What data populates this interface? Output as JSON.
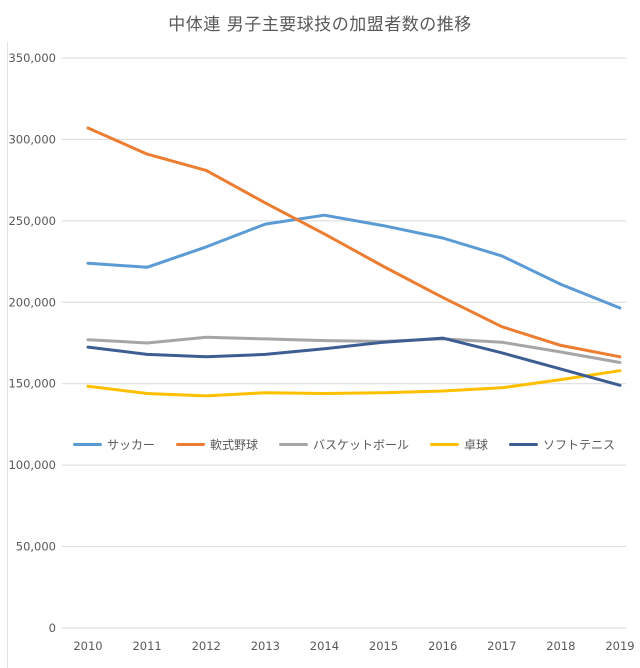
{
  "chart_data": {
    "type": "line",
    "title": "中体連 男子主要球技の加盟者数の推移",
    "x": [
      2010,
      2011,
      2012,
      2013,
      2014,
      2015,
      2016,
      2017,
      2018,
      2019
    ],
    "series": [
      {
        "id": "soccer",
        "name": "サッカー",
        "color": "#5B9BD5",
        "values": [
          224000,
          221500,
          234000,
          248000,
          253500,
          247000,
          239500,
          228500,
          211000,
          196500
        ]
      },
      {
        "id": "baseball",
        "name": "軟式野球",
        "color": "#ED7D31",
        "values": [
          307000,
          291000,
          281000,
          261000,
          242000,
          222000,
          203000,
          185000,
          173500,
          166500
        ]
      },
      {
        "id": "basketball",
        "name": "バスケットボール",
        "color": "#A6A6A6",
        "values": [
          177000,
          175000,
          178500,
          177500,
          176500,
          176000,
          177500,
          175500,
          169500,
          163000
        ]
      },
      {
        "id": "table-tennis",
        "name": "卓球",
        "color": "#FFC000",
        "values": [
          148500,
          144000,
          142500,
          144500,
          144000,
          144500,
          145500,
          147500,
          152500,
          158000
        ]
      },
      {
        "id": "soft-tennis",
        "name": "ソフトテニス",
        "color": "#3C5E92",
        "values": [
          172500,
          168000,
          166500,
          168000,
          171500,
          175500,
          178000,
          169000,
          159000,
          149000
        ]
      }
    ],
    "ylim": [
      0,
      350000
    ],
    "y_tick_step": 50000,
    "y_tick_labels": [
      "0",
      "50,000",
      "100,000",
      "150,000",
      "200,000",
      "250,000",
      "300,000",
      "350,000"
    ],
    "xlabel": "",
    "ylabel": "",
    "grid": "horizontal",
    "legend_position": "inside-middle",
    "colors": {
      "background": "#FFFFFF",
      "gridline": "#D9D9D9",
      "axis_text": "#595959",
      "title_text": "#595959",
      "frame_border": "#E2E2E2"
    }
  }
}
